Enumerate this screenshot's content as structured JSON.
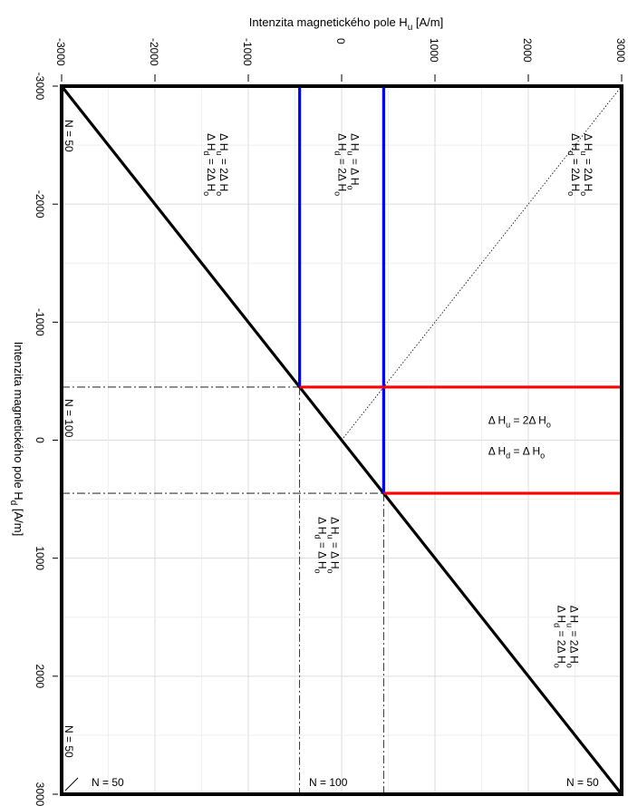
{
  "chart_data": {
    "type": "line",
    "xlabel_main": "Intenzita magnetického pole  H",
    "xlabel_sub": "u",
    "xlabel_unit": " [A/m]",
    "ylabel_main": "Intenzita magnetického pole  H",
    "ylabel_sub": "d",
    "ylabel_unit": " [A/m]",
    "x_ticks": [
      -3000,
      -2000,
      -1000,
      0,
      1000,
      2000,
      3000
    ],
    "x_tick_labels": [
      "-3000",
      "-2000",
      "-1000",
      "0",
      "1000",
      "2000",
      "3000"
    ],
    "y_ticks": [
      -3000,
      -2000,
      -1000,
      0,
      1000,
      2000,
      3000
    ],
    "y_tick_labels": [
      "-3000",
      "-2000",
      "-1000",
      "0",
      "1000",
      "2000",
      "3000"
    ],
    "xlim": [
      -3000,
      3000
    ],
    "ylim": [
      -3000,
      3000
    ],
    "grid": true,
    "colors": {
      "frame": "#000000",
      "blue": "#0000ff",
      "red": "#ff0000",
      "grid": "#dcdcdc"
    },
    "series": [
      {
        "name": "",
        "color": "#000000",
        "points": [
          [
            -3000,
            -3000
          ],
          [
            3000,
            3000
          ]
        ]
      },
      {
        "name": "",
        "color": "#0000ff",
        "points": [
          [
            -450,
            -3000
          ],
          [
            -450,
            -450
          ]
        ]
      },
      {
        "name": "",
        "color": "#0000ff",
        "points": [
          [
            450,
            -3000
          ],
          [
            450,
            450
          ]
        ]
      },
      {
        "name": "",
        "color": "#ff0000",
        "points": [
          [
            -450,
            -450
          ],
          [
            3000,
            -450
          ]
        ]
      },
      {
        "name": "",
        "color": "#ff0000",
        "points": [
          [
            450,
            450
          ],
          [
            3000,
            450
          ]
        ]
      }
    ],
    "dashdot_lines": [
      {
        "points": [
          [
            -3000,
            -450
          ],
          [
            -450,
            -450
          ]
        ]
      },
      {
        "points": [
          [
            -3000,
            450
          ],
          [
            450,
            450
          ]
        ]
      },
      {
        "points": [
          [
            -450,
            -450
          ],
          [
            -450,
            3000
          ]
        ]
      },
      {
        "points": [
          [
            450,
            450
          ],
          [
            450,
            3000
          ]
        ]
      }
    ],
    "dotted_line": {
      "points": [
        [
          0,
          0
        ],
        [
          3000,
          -3000
        ]
      ]
    },
    "annotations": {
      "region_top_left": {
        "l1": "Δ H",
        "s1": "u",
        "r1": " = 2Δ H",
        "e1": "o",
        "l2": "Δ H",
        "s2": "d",
        "r2": " = 2Δ H",
        "e2": "o",
        "x": -1300,
        "y": -2600
      },
      "region_top_mid": {
        "l1": "Δ H",
        "s1": "u",
        "r1": " = Δ H",
        "e1": "o",
        "l2": "Δ H",
        "s2": "d",
        "r2": " = 2Δ H",
        "e2": "o",
        "x": 100,
        "y": -2600
      },
      "region_top_right": {
        "l1": "Δ H",
        "s1": "u",
        "r1": " = 2Δ H",
        "e1": "o",
        "l2": "Δ H",
        "s2": "d",
        "r2": " = 2Δ H",
        "e2": "o",
        "x": 2600,
        "y": -2600
      },
      "region_center_right": {
        "l1": "Δ H",
        "s1": "u",
        "r1": " = 2Δ H",
        "e1": "o",
        "l2": "Δ H",
        "s2": "d",
        "r2": " = Δ H",
        "e2": "o",
        "x": 2250,
        "y": 0
      },
      "region_center": {
        "l1": "Δ H",
        "s1": "u",
        "r1": " = Δ H",
        "e1": "o",
        "l2": "Δ H",
        "s2": "d",
        "r2": " = Δ H",
        "e2": "o",
        "x": -110,
        "y": 650
      },
      "region_bottom_right": {
        "l1": "Δ H",
        "s1": "u",
        "r1": " = 2Δ H",
        "e1": "o",
        "l2": "Δ H",
        "s2": "d",
        "r2": " = 2Δ H",
        "e2": "o",
        "x": 2450,
        "y": 1400
      }
    },
    "n_labels": {
      "left_top": "N = 50",
      "left_mid": "N = 100",
      "left_bot": "N = 50",
      "bottom_left": "N = 50",
      "bottom_mid": "N = 100",
      "bottom_right": "N = 50"
    }
  }
}
